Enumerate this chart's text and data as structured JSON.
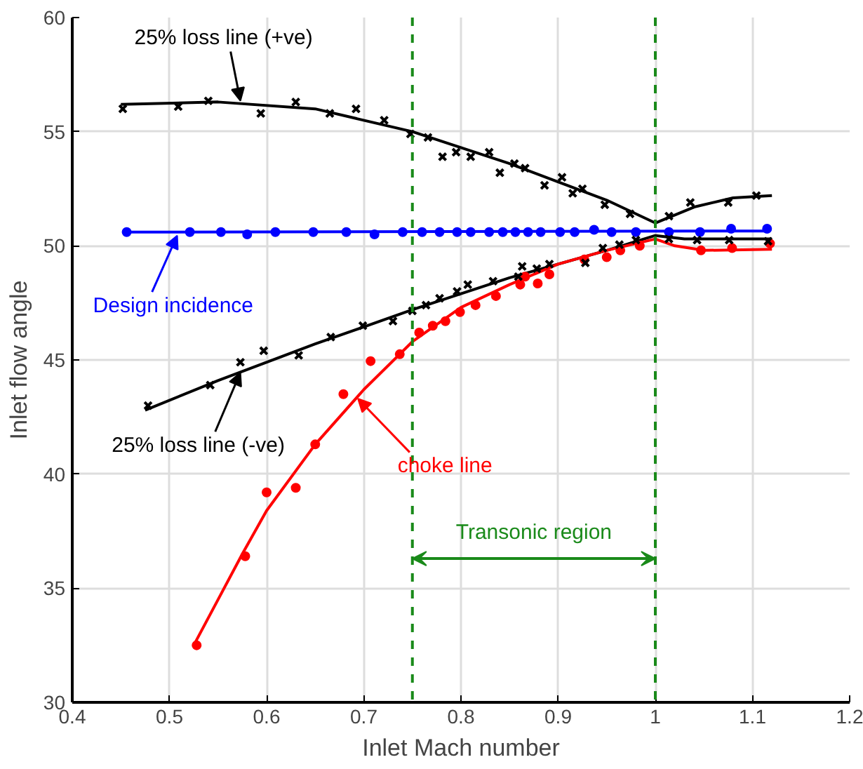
{
  "chart_data": {
    "type": "scatter",
    "xlabel": "Inlet Mach number",
    "ylabel": "Inlet flow angle",
    "xlim": [
      0.4,
      1.2
    ],
    "ylim": [
      30,
      60
    ],
    "xticks": [
      0.4,
      0.5,
      0.6,
      0.7,
      0.8,
      0.9,
      1,
      1.1,
      1.2
    ],
    "yticks": [
      30,
      35,
      40,
      45,
      50,
      55,
      60
    ],
    "grid": true,
    "series": [
      {
        "marker": "cross",
        "color": "#000000",
        "x": [
          0.452,
          0.509,
          0.54,
          0.594,
          0.63,
          0.665,
          0.692,
          0.721,
          0.748,
          0.766,
          0.781,
          0.795,
          0.81,
          0.829,
          0.84,
          0.855,
          0.866,
          0.886,
          0.904,
          0.915,
          0.925,
          0.948,
          0.974,
          1.014,
          1.036,
          1.075,
          1.104
        ],
        "values": [
          56.0,
          56.1,
          56.35,
          55.8,
          56.3,
          55.8,
          56.0,
          55.5,
          54.9,
          54.75,
          53.9,
          54.1,
          53.9,
          54.1,
          53.2,
          53.6,
          53.4,
          52.65,
          53.0,
          52.3,
          52.5,
          51.8,
          51.4,
          51.3,
          51.9,
          51.9,
          52.2
        ]
      },
      {
        "type": "line",
        "color": "#000000",
        "line_style": "solid",
        "x": [
          0.45,
          0.55,
          0.65,
          0.75,
          0.85,
          0.95,
          1.0,
          1.04,
          1.08,
          1.12
        ],
        "values": [
          56.2,
          56.3,
          56.0,
          55.0,
          53.6,
          52.0,
          51.0,
          51.7,
          52.1,
          52.2
        ]
      },
      {
        "marker": "circle",
        "color": "#0000ff",
        "x": [
          0.456,
          0.521,
          0.553,
          0.58,
          0.609,
          0.648,
          0.682,
          0.711,
          0.74,
          0.76,
          0.778,
          0.796,
          0.81,
          0.829,
          0.843,
          0.856,
          0.869,
          0.882,
          0.902,
          0.917,
          0.937,
          0.955,
          0.98,
          1.014,
          1.046,
          1.078,
          1.115
        ],
        "values": [
          50.6,
          50.6,
          50.6,
          50.5,
          50.6,
          50.6,
          50.6,
          50.5,
          50.6,
          50.6,
          50.6,
          50.6,
          50.6,
          50.6,
          50.6,
          50.6,
          50.6,
          50.6,
          50.6,
          50.6,
          50.7,
          50.6,
          50.6,
          50.6,
          50.6,
          50.75,
          50.75
        ]
      },
      {
        "type": "line",
        "color": "#0000ff",
        "line_style": "solid",
        "x": [
          0.455,
          1.115
        ],
        "values": [
          50.6,
          50.65
        ]
      },
      {
        "marker": "cross",
        "color": "#000000",
        "x": [
          0.478,
          0.542,
          0.573,
          0.597,
          0.633,
          0.666,
          0.699,
          0.73,
          0.75,
          0.764,
          0.778,
          0.796,
          0.807,
          0.833,
          0.859,
          0.863,
          0.878,
          0.891,
          0.928,
          0.946,
          0.963,
          0.98,
          1.014,
          1.043,
          1.076,
          1.116
        ],
        "values": [
          43.0,
          43.9,
          44.9,
          45.4,
          45.2,
          46.0,
          46.5,
          46.7,
          47.15,
          47.4,
          47.7,
          48.0,
          48.3,
          48.45,
          48.65,
          49.1,
          49.0,
          49.2,
          49.25,
          49.9,
          50.05,
          50.25,
          50.3,
          50.25,
          50.25,
          50.2
        ]
      },
      {
        "type": "line",
        "color": "#000000",
        "line_style": "solid",
        "x": [
          0.475,
          0.55,
          0.65,
          0.75,
          0.85,
          0.95,
          1.0,
          1.03,
          1.12
        ],
        "values": [
          42.8,
          44.1,
          45.7,
          47.2,
          48.6,
          49.8,
          50.45,
          50.3,
          50.3
        ]
      },
      {
        "marker": "circle",
        "color": "#ff0000",
        "x": [
          0.528,
          0.578,
          0.6,
          0.63,
          0.65,
          0.679,
          0.707,
          0.737,
          0.757,
          0.771,
          0.784,
          0.799,
          0.815,
          0.836,
          0.861,
          0.866,
          0.879,
          0.891,
          0.927,
          0.95,
          0.964,
          0.984,
          1.047,
          1.079,
          1.118
        ],
        "values": [
          32.5,
          36.4,
          39.2,
          39.4,
          41.3,
          43.5,
          44.95,
          45.25,
          46.2,
          46.5,
          46.7,
          47.1,
          47.4,
          47.8,
          48.3,
          48.65,
          48.35,
          48.75,
          49.4,
          49.5,
          49.8,
          50.0,
          49.8,
          49.9,
          50.1
        ]
      },
      {
        "type": "line",
        "color": "#ff0000",
        "line_style": "solid",
        "x": [
          0.525,
          0.55,
          0.575,
          0.6,
          0.65,
          0.7,
          0.75,
          0.8,
          0.85,
          0.9,
          0.95,
          1.0,
          1.02,
          1.05,
          1.12
        ],
        "values": [
          32.5,
          34.5,
          36.5,
          38.4,
          41.3,
          43.7,
          45.8,
          47.3,
          48.3,
          49.2,
          49.8,
          50.3,
          50.0,
          49.8,
          49.85
        ]
      }
    ],
    "ref_lines": [
      {
        "axis": "x",
        "value": 0.75,
        "color": "#1a8a1a",
        "line_style": "dashed"
      },
      {
        "axis": "x",
        "value": 1.0,
        "color": "#1a8a1a",
        "line_style": "dashed"
      }
    ],
    "annotations": [
      {
        "text": "25% loss line (+ve)",
        "x": 0.573,
        "y": 56.35
      },
      {
        "text": "Design incidence",
        "x": 0.508,
        "y": 50.45
      },
      {
        "text": "25% loss line (-ve)",
        "x": 0.573,
        "y": 44.45
      },
      {
        "text": "choke line",
        "x": 0.694,
        "y": 43.3
      },
      "Transonic region"
    ]
  }
}
